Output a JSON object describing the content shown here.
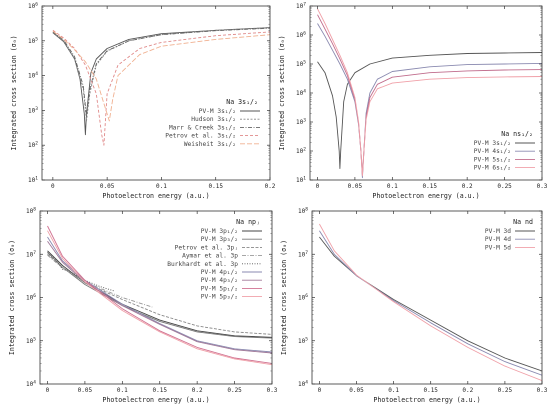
{
  "chart_data": [
    {
      "type": "line",
      "xlabel": "Photoelectron energy (a.u.)",
      "ylabel": "Integrated cross section (σ₀)",
      "xlim": [
        -0.01,
        0.2
      ],
      "ylim_log10": [
        1,
        6
      ],
      "xticks": [
        "0",
        "0.05",
        "0.1",
        "0.15",
        "0.2"
      ],
      "ytick_exponents": [
        1,
        2,
        3,
        4,
        5,
        6
      ],
      "legend_title": "Na 3s₁/₂",
      "legend_position": "lower-right",
      "series": [
        {
          "name": "PV-M  3s₁/₂",
          "color": "#555555",
          "dash": "",
          "x": [
            0,
            0.01,
            0.02,
            0.025,
            0.029,
            0.03,
            0.031,
            0.035,
            0.04,
            0.05,
            0.07,
            0.1,
            0.15,
            0.2
          ],
          "y": [
            170000,
            95000,
            30000,
            8000,
            800,
            200,
            800,
            12000,
            30000,
            60000,
            110000,
            160000,
            200000,
            240000
          ]
        },
        {
          "name": "Hudson  3s₁/₂",
          "color": "#888888",
          "dash": "2,1.5",
          "x": [
            0,
            0.01,
            0.02,
            0.028,
            0.031,
            0.034,
            0.04,
            0.05,
            0.07,
            0.1,
            0.15,
            0.2
          ],
          "y": [
            175000,
            100000,
            30000,
            4000,
            500,
            3000,
            20000,
            50000,
            100000,
            150000,
            200000,
            240000
          ]
        },
        {
          "name": "Marr & Creek  3s₁/₂",
          "color": "#666666",
          "dash": "4,1.5,1,1.5",
          "x": [
            0,
            0.01,
            0.02,
            0.028,
            0.031,
            0.034,
            0.04,
            0.05,
            0.07,
            0.1,
            0.15,
            0.2
          ],
          "y": [
            180000,
            105000,
            35000,
            5000,
            700,
            4000,
            22000,
            52000,
            100000,
            150000,
            195000,
            230000
          ]
        },
        {
          "name": "Petrov et al.  3s₁/₂",
          "color": "#e08a8a",
          "dash": "3,2",
          "x": [
            0,
            0.01,
            0.02,
            0.03,
            0.04,
            0.045,
            0.047,
            0.05,
            0.06,
            0.08,
            0.1,
            0.15,
            0.2
          ],
          "y": [
            200000,
            120000,
            60000,
            20000,
            3000,
            200,
            100,
            3000,
            20000,
            60000,
            90000,
            140000,
            180000
          ]
        },
        {
          "name": "Weisheit  3s₁/₂",
          "color": "#f0b090",
          "dash": "5,2",
          "x": [
            0,
            0.01,
            0.02,
            0.03,
            0.04,
            0.05,
            0.052,
            0.055,
            0.06,
            0.08,
            0.1,
            0.15,
            0.2
          ],
          "y": [
            190000,
            110000,
            55000,
            25000,
            8000,
            800,
            500,
            2000,
            10000,
            40000,
            70000,
            110000,
            150000
          ]
        }
      ]
    },
    {
      "type": "line",
      "xlabel": "Photoelectron energy (a.u.)",
      "ylabel": "Integrated cross section (σ₀)",
      "xlim": [
        -0.01,
        0.3
      ],
      "ylim_log10": [
        1,
        7
      ],
      "xticks": [
        "0",
        "0.05",
        "0.1",
        "0.15",
        "0.2",
        "0.25",
        "0.3"
      ],
      "ytick_exponents": [
        1,
        2,
        3,
        4,
        5,
        6,
        7
      ],
      "legend_title": "Na ns₁/₂",
      "legend_position": "lower-right",
      "series": [
        {
          "name": "PV-M  3s₁/₂",
          "color": "#555555",
          "dash": "",
          "x": [
            0,
            0.01,
            0.02,
            0.025,
            0.029,
            0.03,
            0.031,
            0.035,
            0.04,
            0.05,
            0.07,
            0.1,
            0.15,
            0.2,
            0.25,
            0.3
          ],
          "y": [
            120000,
            50000,
            8000,
            1500,
            100,
            25,
            100,
            5000,
            20000,
            50000,
            100000,
            160000,
            200000,
            230000,
            240000,
            250000
          ]
        },
        {
          "name": "PV-M  4s₁/₂",
          "color": "#8a8ab0",
          "dash": "",
          "x": [
            0,
            0.01,
            0.02,
            0.03,
            0.04,
            0.05,
            0.055,
            0.058,
            0.06,
            0.062,
            0.065,
            0.07,
            0.08,
            0.1,
            0.15,
            0.2,
            0.25,
            0.3
          ],
          "y": [
            2500000,
            900000,
            300000,
            100000,
            30000,
            5000,
            800,
            100,
            12,
            100,
            2000,
            10000,
            30000,
            55000,
            80000,
            95000,
            100000,
            105000
          ]
        },
        {
          "name": "PV-M  5s₁/₂",
          "color": "#c06c8c",
          "dash": "",
          "x": [
            0,
            0.01,
            0.02,
            0.03,
            0.04,
            0.05,
            0.055,
            0.058,
            0.06,
            0.062,
            0.065,
            0.07,
            0.08,
            0.1,
            0.15,
            0.2,
            0.25,
            0.3
          ],
          "y": [
            5000000,
            1600000,
            500000,
            150000,
            40000,
            6000,
            900,
            100,
            15,
            100,
            1500,
            7000,
            20000,
            35000,
            50000,
            58000,
            62000,
            64000
          ]
        },
        {
          "name": "PV-M  6s₁/₂",
          "color": "#f0a0a8",
          "dash": "",
          "x": [
            0,
            0.01,
            0.02,
            0.03,
            0.04,
            0.05,
            0.055,
            0.058,
            0.06,
            0.062,
            0.065,
            0.07,
            0.08,
            0.1,
            0.15,
            0.2,
            0.25,
            0.3
          ],
          "y": [
            8000000,
            2500000,
            700000,
            200000,
            50000,
            7000,
            1000,
            100,
            14,
            100,
            1200,
            5000,
            14000,
            22000,
            30000,
            34000,
            36000,
            37000
          ]
        }
      ]
    },
    {
      "type": "line",
      "xlabel": "Photoelectron energy (a.u.)",
      "ylabel": "Integrated cross section (σ₀)",
      "xlim": [
        -0.01,
        0.3
      ],
      "ylim_log10": [
        4,
        8
      ],
      "xticks": [
        "0",
        "0.05",
        "0.1",
        "0.15",
        "0.2",
        "0.25",
        "0.3"
      ],
      "ytick_exponents": [
        4,
        5,
        6,
        7,
        8
      ],
      "legend_title": "Na npⱼ",
      "legend_position": "top-right",
      "series": [
        {
          "name": "PV-M  3p₁/₂",
          "color": "#444444",
          "dash": "",
          "x": [
            0,
            0.02,
            0.05,
            0.1,
            0.15,
            0.2,
            0.25,
            0.3
          ],
          "y": [
            12000000,
            5500000,
            2200000,
            700000,
            300000,
            170000,
            130000,
            120000
          ]
        },
        {
          "name": "PV-M  3p₃/₂",
          "color": "#777777",
          "dash": "",
          "x": [
            0,
            0.02,
            0.05,
            0.1,
            0.15,
            0.2,
            0.25,
            0.3
          ],
          "y": [
            11000000,
            5000000,
            2000000,
            650000,
            280000,
            160000,
            125000,
            115000
          ]
        },
        {
          "name": "Petrov et al.  3pⱼ",
          "color": "#888888",
          "dash": "3,1.5",
          "x": [
            0,
            0.02,
            0.05,
            0.1,
            0.15,
            0.2,
            0.25,
            0.3
          ],
          "y": [
            10000000,
            5000000,
            2200000,
            900000,
            400000,
            220000,
            160000,
            140000
          ]
        },
        {
          "name": "Aymar et al.  3p",
          "color": "#999999",
          "dash": "4,1.5,1,1.5",
          "x": [
            0,
            0.02,
            0.05,
            0.1,
            0.14
          ],
          "y": [
            9500000,
            4800000,
            2300000,
            1000000,
            600000
          ]
        },
        {
          "name": "Burkhardt et al.  3p",
          "color": "#555555",
          "dash": "1,1.5",
          "x": [
            0,
            0.01,
            0.02,
            0.03,
            0.05,
            0.07,
            0.09
          ],
          "y": [
            11000000,
            8000000,
            4500000,
            4000000,
            2500000,
            1800000,
            1400000
          ]
        },
        {
          "name": "PV-M  4p₁/₂",
          "color": "#8a8ab0",
          "dash": "",
          "x": [
            0,
            0.02,
            0.05,
            0.1,
            0.15,
            0.2,
            0.25,
            0.3
          ],
          "y": [
            25000000,
            7000000,
            2500000,
            700000,
            250000,
            100000,
            65000,
            55000
          ]
        },
        {
          "name": "PV-M  4p₃/₂",
          "color": "#a07898",
          "dash": "",
          "x": [
            0,
            0.02,
            0.05,
            0.1,
            0.15,
            0.2,
            0.25,
            0.3
          ],
          "y": [
            20000000,
            6500000,
            2300000,
            650000,
            240000,
            95000,
            62000,
            52000
          ]
        },
        {
          "name": "PV-M  5p₁/₂",
          "color": "#d07090",
          "dash": "",
          "x": [
            0,
            0.02,
            0.05,
            0.1,
            0.15,
            0.2,
            0.25,
            0.3
          ],
          "y": [
            45000000,
            9000000,
            2500000,
            550000,
            170000,
            70000,
            40000,
            30000
          ]
        },
        {
          "name": "PV-M  5p₃/₂",
          "color": "#f0a0a8",
          "dash": "",
          "x": [
            0,
            0.02,
            0.05,
            0.1,
            0.15,
            0.2,
            0.25,
            0.3
          ],
          "y": [
            35000000,
            8000000,
            2300000,
            500000,
            160000,
            65000,
            38000,
            28000
          ]
        }
      ]
    },
    {
      "type": "line",
      "xlabel": "Photoelectron energy (a.u.)",
      "ylabel": "Integrated cross section (σ₀)",
      "xlim": [
        -0.01,
        0.3
      ],
      "ylim_log10": [
        4,
        8
      ],
      "xticks": [
        "0",
        "0.05",
        "0.1",
        "0.15",
        "0.2",
        "0.25",
        "0.3"
      ],
      "ytick_exponents": [
        4,
        5,
        6,
        7,
        8
      ],
      "legend_title": "Na nd",
      "legend_position": "top-right",
      "series": [
        {
          "name": "PV-M  3d",
          "color": "#555555",
          "dash": "",
          "x": [
            0,
            0.02,
            0.05,
            0.1,
            0.15,
            0.2,
            0.25,
            0.3
          ],
          "y": [
            25000000,
            9000000,
            3200000,
            900000,
            300000,
            100000,
            40000,
            20000
          ]
        },
        {
          "name": "PV-M  4d",
          "color": "#8a8ab0",
          "dash": "",
          "x": [
            0,
            0.02,
            0.05,
            0.1,
            0.15,
            0.2,
            0.25,
            0.3
          ],
          "y": [
            35000000,
            10000000,
            3200000,
            850000,
            260000,
            85000,
            33000,
            16000
          ]
        },
        {
          "name": "PV-M  5d",
          "color": "#f0a0a8",
          "dash": "",
          "x": [
            0,
            0.02,
            0.05,
            0.1,
            0.15,
            0.2,
            0.25,
            0.3
          ],
          "y": [
            50000000,
            12000000,
            3300000,
            800000,
            220000,
            70000,
            26000,
            12000
          ]
        }
      ]
    }
  ]
}
